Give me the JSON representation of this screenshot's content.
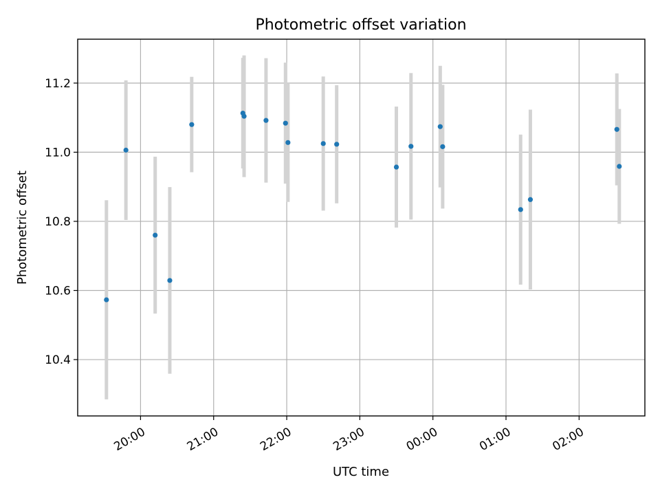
{
  "chart_data": {
    "type": "scatter",
    "title": "Photometric offset variation",
    "xlabel": "UTC time",
    "ylabel": "Photometric offset",
    "x_ticks": [
      "20:00",
      "21:00",
      "22:00",
      "23:00",
      "00:00",
      "01:00",
      "02:00"
    ],
    "y_ticks": [
      "10.4",
      "10.6",
      "10.8",
      "11.0",
      "11.2"
    ],
    "y_tick_values": [
      10.4,
      10.6,
      10.8,
      11.0,
      11.2
    ],
    "xlim_hours": [
      19.14,
      26.9
    ],
    "ylim": [
      10.237,
      11.327
    ],
    "grid": true,
    "marker_color": "#1f77b4",
    "errorbar_color": "#d3d3d3",
    "points": [
      {
        "t": "19:32",
        "y": 10.573,
        "err": 0.288
      },
      {
        "t": "19:48",
        "y": 11.006,
        "err": 0.202
      },
      {
        "t": "20:12",
        "y": 10.76,
        "err": 0.227
      },
      {
        "t": "20:24",
        "y": 10.629,
        "err": 0.27
      },
      {
        "t": "20:42",
        "y": 11.08,
        "err": 0.138
      },
      {
        "t": "21:24",
        "y": 11.113,
        "err": 0.16
      },
      {
        "t": "21:25",
        "y": 11.104,
        "err": 0.176
      },
      {
        "t": "21:43",
        "y": 11.092,
        "err": 0.18
      },
      {
        "t": "21:59",
        "y": 11.084,
        "err": 0.175
      },
      {
        "t": "22:01",
        "y": 11.028,
        "err": 0.172
      },
      {
        "t": "22:30",
        "y": 11.025,
        "err": 0.194
      },
      {
        "t": "22:41",
        "y": 11.023,
        "err": 0.171
      },
      {
        "t": "23:30",
        "y": 10.957,
        "err": 0.175
      },
      {
        "t": "23:42",
        "y": 11.017,
        "err": 0.212
      },
      {
        "t": "00:06",
        "y": 11.074,
        "err": 0.176
      },
      {
        "t": "00:08",
        "y": 11.016,
        "err": 0.179
      },
      {
        "t": "01:12",
        "y": 10.834,
        "err": 0.217
      },
      {
        "t": "01:20",
        "y": 10.863,
        "err": 0.26
      },
      {
        "t": "02:31",
        "y": 11.066,
        "err": 0.162
      },
      {
        "t": "02:33",
        "y": 10.959,
        "err": 0.166
      }
    ]
  }
}
